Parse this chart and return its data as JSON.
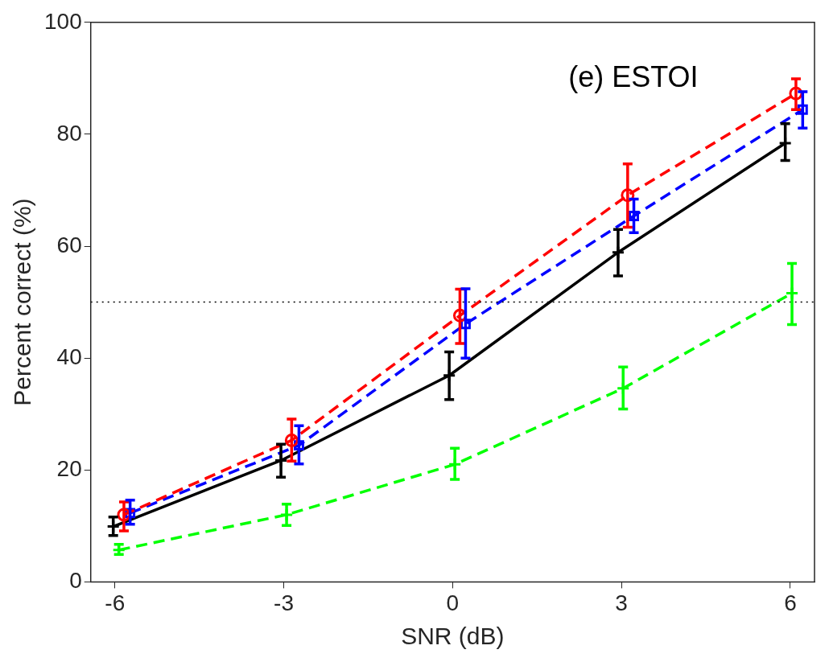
{
  "chart_data": {
    "type": "line",
    "xlabel": "SNR (dB)",
    "ylabel": "Percent correct (%)",
    "annotations": [
      "(e) ESTOI"
    ],
    "xlim": [
      -6.43,
      6.43
    ],
    "xticks": [
      -6,
      -3,
      0,
      3,
      6
    ],
    "ylim": [
      0,
      100
    ],
    "yticks": [
      0,
      20,
      40,
      60,
      80,
      100
    ],
    "grid": false,
    "legend": false,
    "ref_lines": [
      {
        "axis": "y",
        "value": 50,
        "color": "#000000",
        "line_style": "dotted"
      }
    ],
    "series": [
      {
        "color": "#ff0000",
        "marker": "circle",
        "line_style": "dashed",
        "x": [
          -5.84,
          -2.86,
          0.13,
          3.11,
          6.1
        ],
        "values": [
          12,
          25.3,
          47.6,
          69.1,
          87.3
        ],
        "errors": [
          [
            9.1,
            14.3
          ],
          [
            21.6,
            29.1
          ],
          [
            42.6,
            52.3
          ],
          [
            63.4,
            74.7
          ],
          [
            84.4,
            89.9
          ]
        ]
      },
      {
        "color": "#0000ff",
        "marker": "square",
        "line_style": "dashed",
        "x": [
          -5.73,
          -2.73,
          0.23,
          3.22,
          6.22
        ],
        "values": [
          12.3,
          24.4,
          46.1,
          65.4,
          84.4
        ],
        "errors": [
          [
            10.3,
            14.6
          ],
          [
            21.1,
            27.9
          ],
          [
            40,
            52.4
          ],
          [
            62.4,
            68.4
          ],
          [
            81.1,
            87.6
          ]
        ]
      },
      {
        "color": "#000000",
        "marker": "cross",
        "line_style": "solid",
        "x": [
          -6.03,
          -3.05,
          -0.06,
          2.94,
          5.91
        ],
        "values": [
          9.9,
          21.7,
          36.9,
          58.9,
          78.4
        ],
        "errors": [
          [
            8.3,
            11.6
          ],
          [
            18.7,
            24.6
          ],
          [
            32.6,
            41.1
          ],
          [
            54.7,
            63
          ],
          [
            75.3,
            81.9
          ]
        ]
      },
      {
        "color": "#00ff00",
        "marker": "cross",
        "line_style": "dashed",
        "x": [
          -5.93,
          -2.95,
          0.04,
          3.03,
          6.03
        ],
        "values": [
          5.7,
          12,
          21,
          34.6,
          51.6
        ],
        "errors": [
          [
            4.9,
            6.7
          ],
          [
            10.1,
            13.9
          ],
          [
            18.3,
            23.9
          ],
          [
            30.9,
            38.4
          ],
          [
            46,
            56.9
          ]
        ]
      }
    ]
  }
}
